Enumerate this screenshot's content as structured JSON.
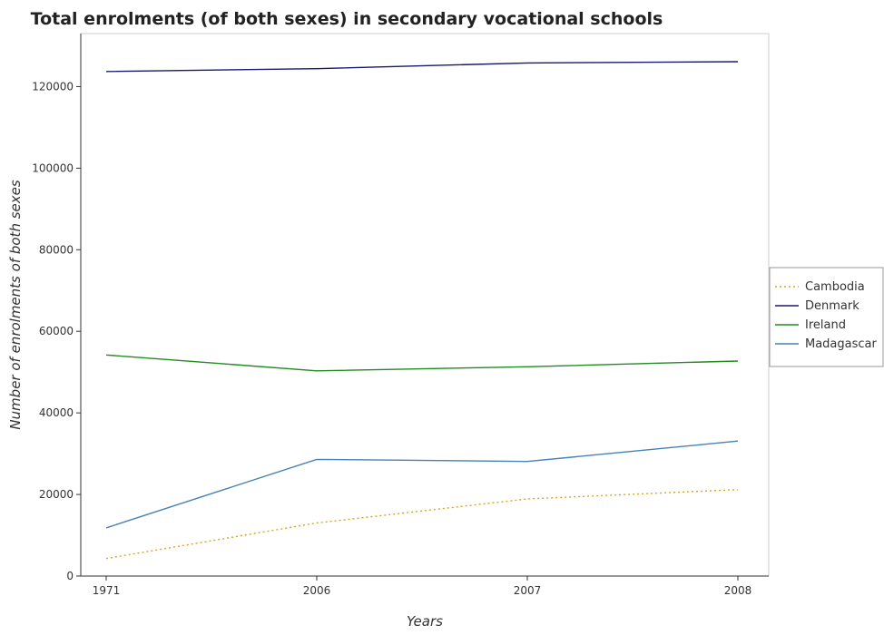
{
  "chart_data": {
    "type": "line",
    "title": "Total enrolments (of both sexes) in secondary vocational schools",
    "xlabel": "Years",
    "ylabel": "Number of enrolments of both sexes",
    "categories": [
      "1971",
      "2006",
      "2007",
      "2008"
    ],
    "ylim": [
      0,
      133000
    ],
    "yticks": [
      0,
      20000,
      40000,
      60000,
      80000,
      100000,
      120000
    ],
    "ytick_labels": [
      "0",
      "20000",
      "40000",
      "60000",
      "80000",
      "100000",
      "120000"
    ],
    "grid": false,
    "legend_position": "right",
    "series": [
      {
        "name": "Cambodia",
        "color": "#DAA520",
        "dash": "2,3",
        "values": [
          4300,
          13000,
          18900,
          21200
        ]
      },
      {
        "name": "Denmark",
        "color": "#191970",
        "dash": "",
        "values": [
          123700,
          124400,
          125800,
          126100
        ]
      },
      {
        "name": "Ireland",
        "color": "#228B22",
        "dash": "",
        "values": [
          54200,
          50300,
          51300,
          52700
        ]
      },
      {
        "name": "Madagascar",
        "color": "#4682B4",
        "dash": "",
        "values": [
          11800,
          28600,
          28100,
          33100
        ]
      }
    ]
  }
}
